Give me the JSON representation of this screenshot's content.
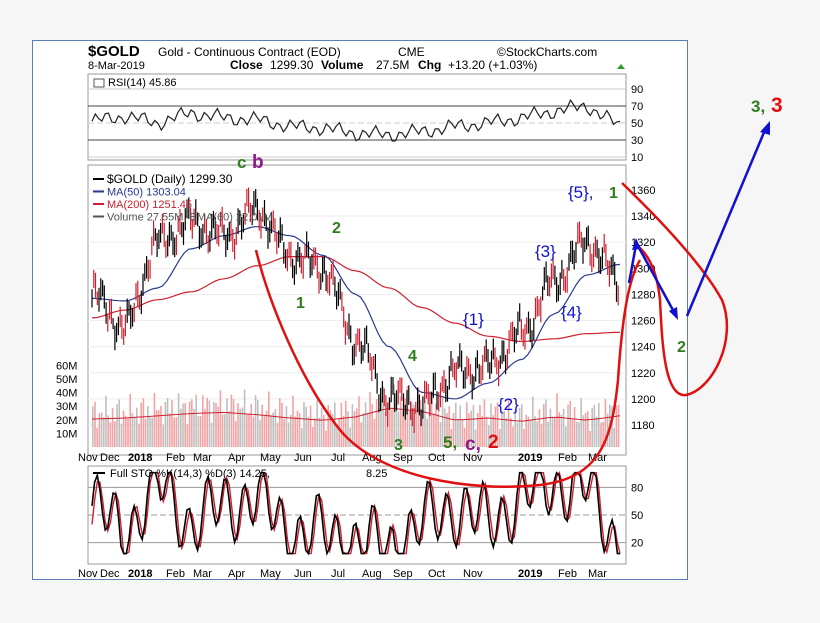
{
  "header": {
    "symbol": "$GOLD",
    "name": "Gold - Continuous Contract (EOD)",
    "exchange": "CME",
    "brand": "©StockCharts.com",
    "date": "8-Mar-2019",
    "close_label": "Close",
    "close_value": "1299.30",
    "volume_label": "Volume",
    "volume_value": "27.5M",
    "chg_label": "Chg",
    "chg_value": "+13.20 (+1.03%)"
  },
  "rsi_panel": {
    "label": "RSI(14) 45.86",
    "ticks": [
      "90",
      "70",
      "50",
      "30",
      "10"
    ]
  },
  "price_panel": {
    "legend": [
      "$GOLD (Daily) 1299.30",
      "MA(50) 1303.04",
      "MA(200) 1251.45",
      "Volume 27.55M, EMA(60) 22.01M"
    ],
    "price_ticks": [
      "1360",
      "1340",
      "1320",
      "1300",
      "1280",
      "1260",
      "1240",
      "1220",
      "1200",
      "1180"
    ],
    "volume_ticks": [
      "60M",
      "50M",
      "40M",
      "30M",
      "20M",
      "10M"
    ]
  },
  "sto_panel": {
    "label_a": "Full STO %K(14,3) %D(3) 14.25,",
    "label_b": "8.25",
    "ticks": [
      "80",
      "50",
      "20"
    ]
  },
  "x_axis": {
    "labels": [
      "Nov",
      "Dec",
      "2018",
      "Feb",
      "Mar",
      "Apr",
      "May",
      "Jun",
      "Jul",
      "Aug",
      "Sep",
      "Oct",
      "Nov",
      "2019",
      "Feb",
      "Mar"
    ]
  },
  "annotations": {
    "c": "c",
    "b": "b",
    "g2": "2",
    "g1": "1",
    "g4": "4",
    "g3": "3",
    "s5": "5,",
    "sc": "c,",
    "s2r": "2",
    "w1": "{1}",
    "w2": "{2}",
    "w3": "{3}",
    "w4": "{4}",
    "w5": "{5},",
    "w5g": "1",
    "right2": "2",
    "t3g": "3,",
    "t3r": "3"
  },
  "colors": {
    "green": "#2e7d1f",
    "purple": "#8b1a8b",
    "red": "#e01010",
    "blue": "#1010d0",
    "ma50": "#2a3a8f",
    "ma200": "#cc2030"
  },
  "chart_data": {
    "type": "line",
    "title": "$GOLD Gold - Continuous Contract (EOD) CME",
    "x": [
      "Nov",
      "Dec",
      "2018",
      "Feb",
      "Mar",
      "Apr",
      "May",
      "Jun",
      "Jul",
      "Aug",
      "Sep",
      "Oct",
      "Nov",
      "Dec",
      "2019",
      "Feb",
      "Mar"
    ],
    "series": [
      {
        "name": "$GOLD (Daily)",
        "values": [
          1280,
          1255,
          1320,
          1335,
          1325,
          1345,
          1310,
          1300,
          1245,
          1200,
          1195,
          1220,
          1225,
          1250,
          1290,
          1320,
          1290
        ]
      },
      {
        "name": "MA(50)",
        "values": [
          1277,
          1275,
          1285,
          1315,
          1325,
          1332,
          1325,
          1310,
          1280,
          1240,
          1205,
          1200,
          1212,
          1230,
          1265,
          1295,
          1303
        ]
      },
      {
        "name": "MA(200)",
        "values": [
          1262,
          1268,
          1276,
          1282,
          1292,
          1302,
          1309,
          1309,
          1298,
          1285,
          1270,
          1258,
          1248,
          1244,
          1246,
          1250,
          1251
        ]
      }
    ],
    "ylim": [
      1170,
      1370
    ],
    "rsi": {
      "values": [
        52,
        58,
        50,
        62,
        56,
        54,
        46,
        44,
        38,
        36,
        40,
        46,
        50,
        56,
        64,
        70,
        46
      ]
    },
    "full_sto_k": {
      "values": [
        60,
        30,
        85,
        40,
        60,
        70,
        30,
        30,
        20,
        15,
        40,
        60,
        40,
        70,
        85,
        80,
        14
      ]
    },
    "volume_m": {
      "values": [
        25,
        26,
        28,
        30,
        31,
        29,
        26,
        24,
        27,
        35,
        32,
        24,
        26,
        23,
        27,
        24,
        28
      ]
    }
  }
}
